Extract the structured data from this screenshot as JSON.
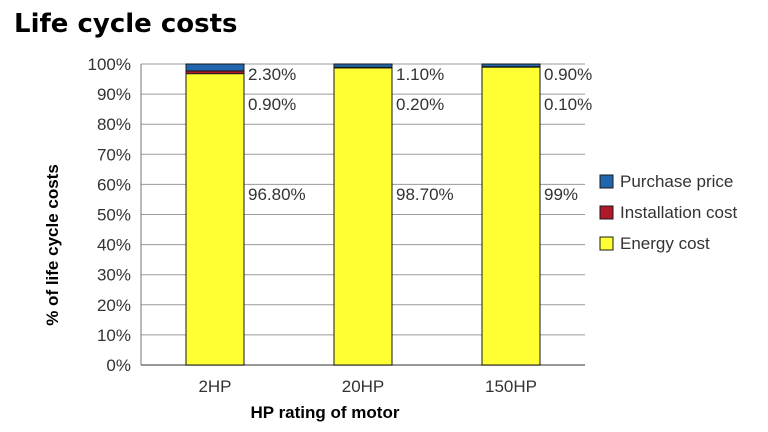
{
  "chart_data": {
    "type": "bar",
    "stacked": true,
    "title": "Life cycle costs",
    "xlabel": "HP rating of motor",
    "ylabel": "% of life cycle costs",
    "ylim": [
      0,
      100
    ],
    "yticks": [
      "0%",
      "10%",
      "20%",
      "30%",
      "40%",
      "50%",
      "60%",
      "70%",
      "80%",
      "90%",
      "100%"
    ],
    "categories": [
      "2HP",
      "20HP",
      "150HP"
    ],
    "series": [
      {
        "name": "Energy cost",
        "color": "#ffff33",
        "values": [
          96.8,
          98.7,
          99.0
        ],
        "labels": [
          "96.80%",
          "98.70%",
          "99%"
        ]
      },
      {
        "name": "Installation cost",
        "color": "#b2182b",
        "values": [
          0.9,
          0.2,
          0.1
        ],
        "labels": [
          "0.90%",
          "0.20%",
          "0.10%"
        ]
      },
      {
        "name": "Purchase price",
        "color": "#2166ac",
        "values": [
          2.3,
          1.1,
          0.9
        ],
        "labels": [
          "2.30%",
          "1.10%",
          "0.90%"
        ]
      }
    ],
    "legend_order": [
      "Purchase price",
      "Installation cost",
      "Energy cost"
    ],
    "legend_position": "right",
    "grid": true
  }
}
